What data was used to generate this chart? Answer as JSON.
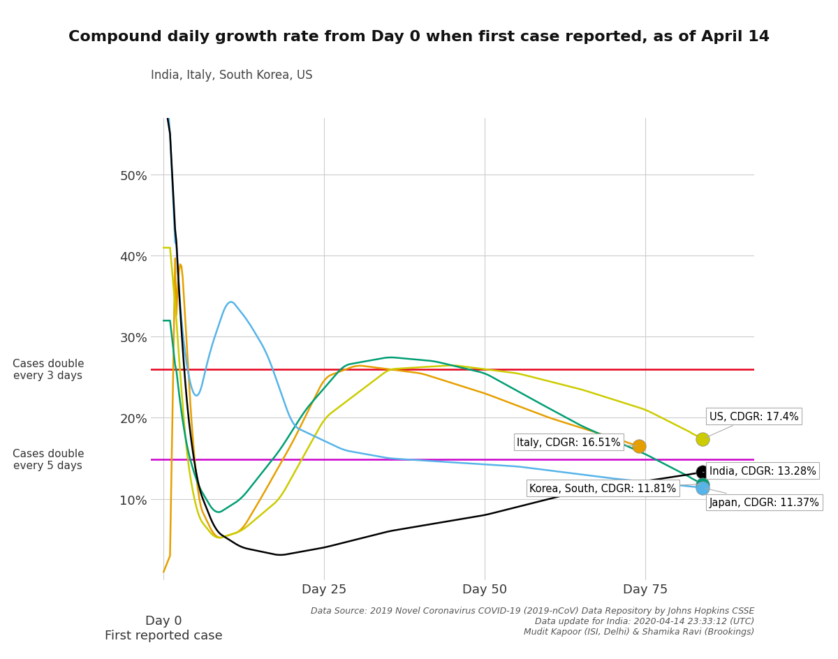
{
  "title": "Compound daily growth rate from Day 0 when first case reported, as of April 14",
  "subtitle": "India, Italy, South Korea, US",
  "hline_3days": 0.2599,
  "hline_5days": 0.1487,
  "hline_3days_label": "Cases double\nevery 3 days",
  "hline_5days_label": "Cases double\nevery 5 days",
  "hline_3days_color": "#e8001c",
  "hline_5days_color": "#cc00cc",
  "background_color": "#ffffff",
  "grid_color": "#cccccc",
  "footnote": "Data Source: 2019 Novel Coronavirus COVID-19 (2019-nCoV) Data Repository by Johns Hopkins CSSE\nData update for India: 2020-04-14 23:33:12 (UTC)\nMudit Kapoor (ISI, Delhi) & Shamika Ravi (Brookings)",
  "india_color": "#000000",
  "italy_color": "#e69f00",
  "us_color": "#cccc00",
  "korea_color": "#009e73",
  "japan_color": "#56b4e9",
  "us_dot_color": "#cccc00",
  "italy_dot_color": "#e69f00",
  "india_dot_color": "#000000",
  "korea_dot_color": "#009e73",
  "japan_dot_color": "#56b4e9"
}
